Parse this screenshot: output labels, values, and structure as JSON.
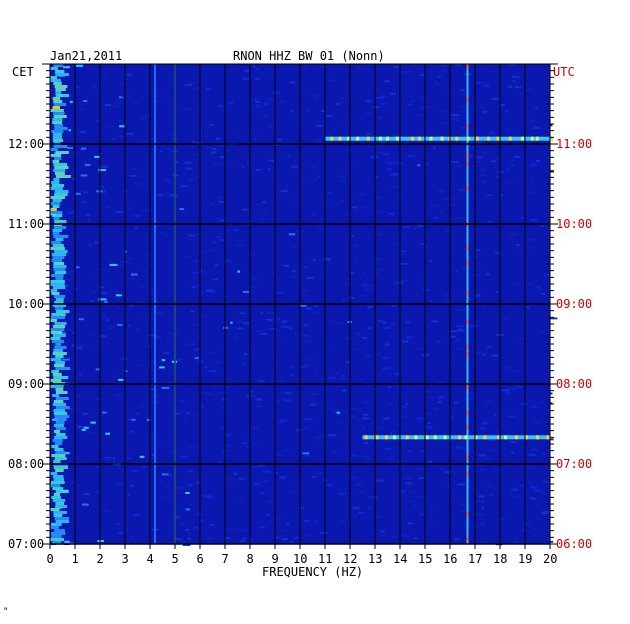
{
  "chart_data": {
    "type": "heatmap",
    "date": "Jan21,2011",
    "title": "RNON HHZ BW 01 (Nonn)",
    "xlabel": "FREQUENCY (HZ)",
    "left_axis_label": "CET",
    "right_axis_label": "UTC",
    "xlim": [
      0,
      20
    ],
    "x_ticks": [
      "0",
      "1",
      "2",
      "3",
      "4",
      "5",
      "6",
      "7",
      "8",
      "9",
      "10",
      "11",
      "12",
      "13",
      "14",
      "15",
      "16",
      "17",
      "18",
      "19",
      "20"
    ],
    "left_ticks": [
      "12:00",
      "11:00",
      "10:00",
      "09:00",
      "08:00",
      "07:00"
    ],
    "right_ticks": [
      "11:00",
      "10:00",
      "09:00",
      "08:00",
      "07:00",
      "06:00"
    ],
    "time_range_cet": [
      "07:00",
      "13:00"
    ],
    "colors": {
      "background": "#0a18b0",
      "grid": "#000000",
      "utc": "#cc0000"
    },
    "features": [
      {
        "kind": "band",
        "x_from": 0,
        "x_to": 0.6,
        "note_level": "high"
      },
      {
        "kind": "line",
        "x": 5.0,
        "level": "medium"
      },
      {
        "kind": "line",
        "x": 16.7,
        "level": "high"
      },
      {
        "kind": "line",
        "x": 4.2,
        "level": "low"
      },
      {
        "kind": "event",
        "time_cet": "12:04",
        "x_from": 11,
        "x_to": 20
      },
      {
        "kind": "event",
        "time_cet": "08:20",
        "x_from": 12.5,
        "x_to": 20
      }
    ]
  },
  "footer_mark": "\""
}
